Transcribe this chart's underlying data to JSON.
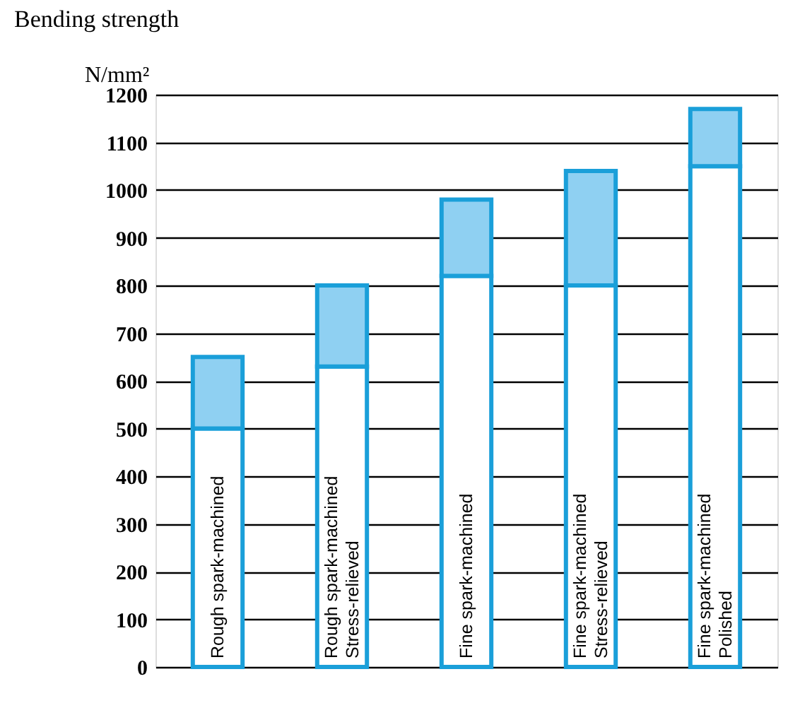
{
  "chart_data": {
    "type": "bar",
    "title": "Bending strength",
    "ylabel": "N/mm²",
    "categories": [
      "Rough spark-machined",
      "Rough spark-machined\nStress-relieved",
      "Fine spark-machined",
      "Fine spark-machined\nStress-relieved",
      "Fine spark-machined\nPolished"
    ],
    "stacked": true,
    "series": [
      {
        "color": "#ffffff",
        "values": [
          500,
          630,
          820,
          800,
          1050
        ]
      },
      {
        "color": "#8fd0f2",
        "values": [
          150,
          170,
          160,
          240,
          120
        ]
      }
    ],
    "ylim": [
      0,
      1200
    ],
    "yticks": [
      0,
      100,
      200,
      300,
      400,
      500,
      600,
      700,
      800,
      900,
      1000,
      1100,
      1200
    ],
    "grid": "y",
    "legend": false,
    "tick_labels": "y"
  }
}
